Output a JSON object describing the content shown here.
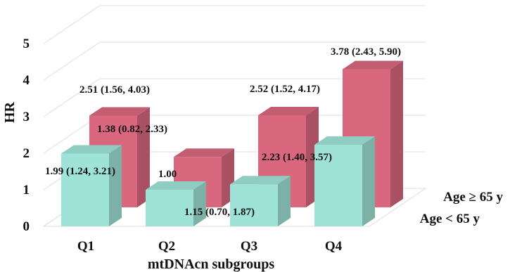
{
  "chart_data": {
    "type": "bar",
    "ylabel": "HR",
    "xlabel": "mtDNAcn subgroups",
    "categories": [
      "Q1",
      "Q2",
      "Q3",
      "Q4"
    ],
    "ylim": [
      0,
      5
    ],
    "yticks": [
      "0",
      "1",
      "2",
      "3",
      "4",
      "5"
    ],
    "grid": true,
    "series": [
      {
        "name": "Age < 65 y",
        "color": "#9fe3d8",
        "values": [
          1.99,
          1.0,
          1.15,
          2.23
        ],
        "labels": [
          "1.99 (1.24, 3.21)",
          "1.00",
          "1.15 (0.70, 1.87)",
          "2.23 (1.40, 3.57)"
        ]
      },
      {
        "name": "Age ≥ 65 y",
        "color": "#d9687f",
        "values": [
          2.51,
          1.38,
          2.52,
          3.78
        ],
        "labels": [
          "2.51 (1.56, 4.03)",
          "1.38 (0.82, 2.33)",
          "2.52 (1.52, 4.17)",
          "3.78 (2.43, 5.90)"
        ]
      }
    ]
  }
}
